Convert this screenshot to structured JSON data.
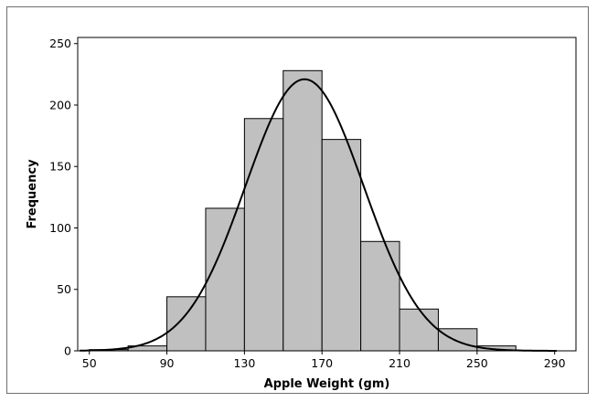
{
  "chart_data": {
    "type": "bar",
    "subtype": "histogram",
    "xlabel": "Apple Weight (gm)",
    "ylabel": "Frequency",
    "xlim": [
      44,
      301
    ],
    "ylim": [
      0,
      255
    ],
    "x_ticks": [
      50,
      90,
      130,
      170,
      210,
      250,
      290
    ],
    "y_ticks": [
      0,
      50,
      100,
      150,
      200,
      250
    ],
    "bin_width": 20,
    "bins": [
      {
        "start": 50,
        "end": 70,
        "value": 1
      },
      {
        "start": 70,
        "end": 90,
        "value": 4
      },
      {
        "start": 90,
        "end": 110,
        "value": 44
      },
      {
        "start": 110,
        "end": 130,
        "value": 116
      },
      {
        "start": 130,
        "end": 150,
        "value": 189
      },
      {
        "start": 150,
        "end": 170,
        "value": 228
      },
      {
        "start": 170,
        "end": 190,
        "value": 172
      },
      {
        "start": 190,
        "end": 210,
        "value": 89
      },
      {
        "start": 210,
        "end": 230,
        "value": 34
      },
      {
        "start": 230,
        "end": 250,
        "value": 18
      },
      {
        "start": 250,
        "end": 270,
        "value": 4
      }
    ],
    "fit_curve": {
      "type": "normal",
      "mean": 161,
      "sd": 30.5,
      "peak": 221
    },
    "grid": false,
    "colors": {
      "bar_fill": "#c0c0c0",
      "bar_stroke": "#000000",
      "curve": "#000000",
      "axis": "#000000"
    }
  }
}
